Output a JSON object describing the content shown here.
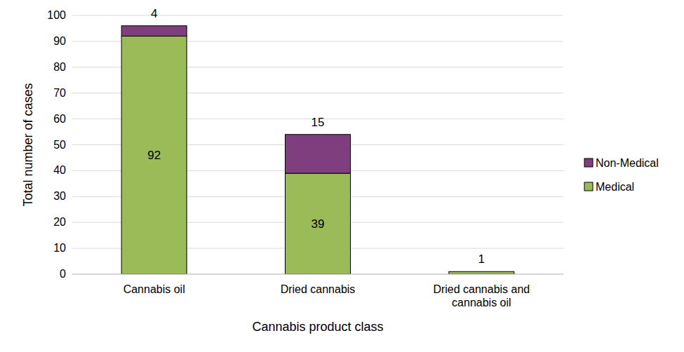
{
  "chart_data": {
    "type": "bar",
    "stacked": true,
    "data_labels": true,
    "grid": true,
    "legend": "right",
    "x_label": "Cannabis product class",
    "y_label": "Total number of cases",
    "categories": [
      "Cannabis oil",
      "Dried cannabis",
      "Dried cannabis and cannabis oil"
    ],
    "series": [
      {
        "name": "Medical",
        "color": "#9bbb59",
        "values": [
          92,
          39,
          1
        ]
      },
      {
        "name": "Non-Medical",
        "color": "#7f3f7f",
        "values": [
          4,
          15,
          null
        ]
      }
    ],
    "ylim": [
      0,
      100
    ],
    "yticks": [
      0,
      10,
      20,
      30,
      40,
      50,
      60,
      70,
      80,
      90,
      100
    ]
  }
}
